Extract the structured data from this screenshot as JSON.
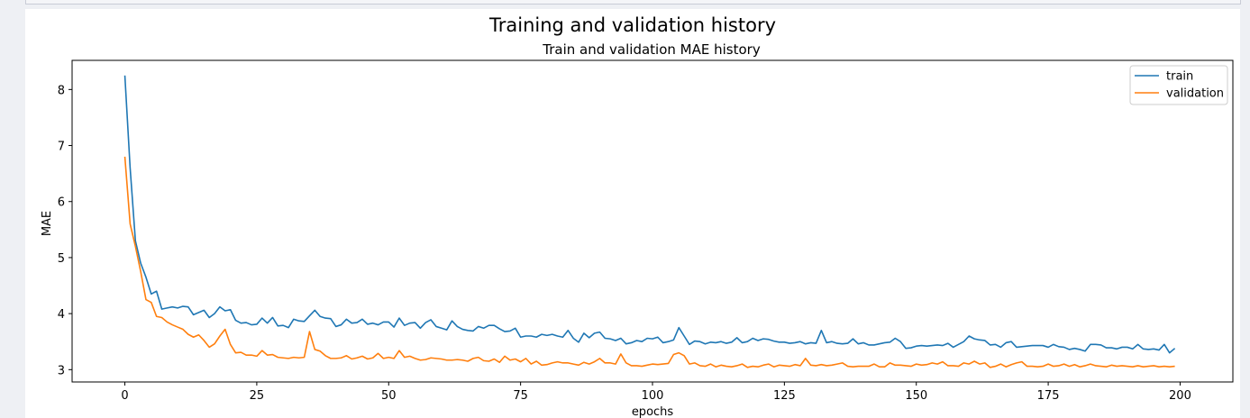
{
  "figure": {
    "suptitle": "Training and validation history"
  },
  "chart_data": {
    "type": "line",
    "title": "Train and validation MAE history",
    "xlabel": "epochs",
    "ylabel": "MAE",
    "xlim": [
      -10,
      210
    ],
    "ylim": [
      2.78,
      8.52
    ],
    "xticks": [
      0,
      25,
      50,
      75,
      100,
      125,
      150,
      175,
      200
    ],
    "yticks": [
      3,
      4,
      5,
      6,
      7,
      8
    ],
    "legend_position": "top-right",
    "series": [
      {
        "name": "train",
        "color": "#1f77b4",
        "x": [
          0,
          1,
          2,
          3,
          4,
          5,
          6,
          7,
          8,
          9,
          10,
          11,
          12,
          13,
          14,
          15,
          16,
          17,
          18,
          19,
          20,
          21,
          22,
          23,
          24,
          25,
          26,
          27,
          28,
          29,
          30,
          31,
          32,
          33,
          34,
          35,
          36,
          37,
          38,
          39,
          40,
          41,
          42,
          43,
          44,
          45,
          46,
          47,
          48,
          49,
          50,
          51,
          52,
          53,
          54,
          55,
          56,
          57,
          58,
          59,
          60,
          61,
          62,
          63,
          64,
          65,
          66,
          67,
          68,
          69,
          70,
          71,
          72,
          73,
          74,
          75,
          76,
          77,
          78,
          79,
          80,
          81,
          82,
          83,
          84,
          85,
          86,
          87,
          88,
          89,
          90,
          91,
          92,
          93,
          94,
          95,
          96,
          97,
          98,
          99,
          100,
          101,
          102,
          103,
          104,
          105,
          106,
          107,
          108,
          109,
          110,
          111,
          112,
          113,
          114,
          115,
          116,
          117,
          118,
          119,
          120,
          121,
          122,
          123,
          124,
          125,
          126,
          127,
          128,
          129,
          130,
          131,
          132,
          133,
          134,
          135,
          136,
          137,
          138,
          139,
          140,
          141,
          142,
          143,
          144,
          145,
          146,
          147,
          148,
          149,
          150,
          151,
          152,
          153,
          154,
          155,
          156,
          157,
          158,
          159,
          160,
          161,
          162,
          163,
          164,
          165,
          166,
          167,
          168,
          169,
          170,
          171,
          172,
          173,
          174,
          175,
          176,
          177,
          178,
          179,
          180,
          181,
          182,
          183,
          184,
          185,
          186,
          187,
          188,
          189,
          190,
          191,
          192,
          193,
          194,
          195,
          196,
          197,
          198,
          199
        ],
        "values": [
          8.25,
          6.6,
          5.3,
          4.9,
          4.65,
          4.35,
          4.4,
          4.08,
          4.1,
          4.12,
          4.1,
          4.13,
          4.12,
          3.98,
          4.02,
          4.06,
          3.93,
          4.0,
          4.12,
          4.05,
          4.07,
          3.88,
          3.83,
          3.84,
          3.8,
          3.81,
          3.92,
          3.83,
          3.93,
          3.78,
          3.79,
          3.75,
          3.9,
          3.87,
          3.86,
          3.96,
          4.06,
          3.95,
          3.92,
          3.91,
          3.77,
          3.8,
          3.9,
          3.83,
          3.84,
          3.9,
          3.81,
          3.83,
          3.8,
          3.85,
          3.85,
          3.76,
          3.92,
          3.79,
          3.83,
          3.84,
          3.74,
          3.84,
          3.89,
          3.77,
          3.74,
          3.71,
          3.87,
          3.77,
          3.72,
          3.7,
          3.69,
          3.77,
          3.74,
          3.79,
          3.79,
          3.73,
          3.68,
          3.69,
          3.74,
          3.58,
          3.6,
          3.6,
          3.58,
          3.63,
          3.61,
          3.63,
          3.6,
          3.58,
          3.7,
          3.56,
          3.49,
          3.65,
          3.57,
          3.65,
          3.67,
          3.56,
          3.55,
          3.52,
          3.56,
          3.46,
          3.48,
          3.52,
          3.5,
          3.56,
          3.55,
          3.58,
          3.48,
          3.5,
          3.53,
          3.75,
          3.6,
          3.45,
          3.51,
          3.5,
          3.46,
          3.49,
          3.48,
          3.5,
          3.47,
          3.49,
          3.57,
          3.48,
          3.5,
          3.56,
          3.52,
          3.55,
          3.54,
          3.51,
          3.49,
          3.49,
          3.47,
          3.48,
          3.5,
          3.46,
          3.48,
          3.47,
          3.7,
          3.48,
          3.5,
          3.47,
          3.46,
          3.47,
          3.55,
          3.46,
          3.48,
          3.44,
          3.44,
          3.46,
          3.48,
          3.49,
          3.56,
          3.5,
          3.38,
          3.39,
          3.42,
          3.43,
          3.42,
          3.43,
          3.44,
          3.43,
          3.47,
          3.4,
          3.45,
          3.5,
          3.6,
          3.55,
          3.53,
          3.52,
          3.44,
          3.45,
          3.4,
          3.48,
          3.5,
          3.4,
          3.41,
          3.42,
          3.43,
          3.43,
          3.43,
          3.4,
          3.45,
          3.41,
          3.4,
          3.36,
          3.38,
          3.36,
          3.33,
          3.45,
          3.45,
          3.44,
          3.39,
          3.39,
          3.37,
          3.4,
          3.4,
          3.37,
          3.45,
          3.37,
          3.36,
          3.37,
          3.35,
          3.45,
          3.3,
          3.38
        ]
      },
      {
        "name": "validation",
        "color": "#ff7f0e",
        "x": [
          0,
          1,
          2,
          3,
          4,
          5,
          6,
          7,
          8,
          9,
          10,
          11,
          12,
          13,
          14,
          15,
          16,
          17,
          18,
          19,
          20,
          21,
          22,
          23,
          24,
          25,
          26,
          27,
          28,
          29,
          30,
          31,
          32,
          33,
          34,
          35,
          36,
          37,
          38,
          39,
          40,
          41,
          42,
          43,
          44,
          45,
          46,
          47,
          48,
          49,
          50,
          51,
          52,
          53,
          54,
          55,
          56,
          57,
          58,
          59,
          60,
          61,
          62,
          63,
          64,
          65,
          66,
          67,
          68,
          69,
          70,
          71,
          72,
          73,
          74,
          75,
          76,
          77,
          78,
          79,
          80,
          81,
          82,
          83,
          84,
          85,
          86,
          87,
          88,
          89,
          90,
          91,
          92,
          93,
          94,
          95,
          96,
          97,
          98,
          99,
          100,
          101,
          102,
          103,
          104,
          105,
          106,
          107,
          108,
          109,
          110,
          111,
          112,
          113,
          114,
          115,
          116,
          117,
          118,
          119,
          120,
          121,
          122,
          123,
          124,
          125,
          126,
          127,
          128,
          129,
          130,
          131,
          132,
          133,
          134,
          135,
          136,
          137,
          138,
          139,
          140,
          141,
          142,
          143,
          144,
          145,
          146,
          147,
          148,
          149,
          150,
          151,
          152,
          153,
          154,
          155,
          156,
          157,
          158,
          159,
          160,
          161,
          162,
          163,
          164,
          165,
          166,
          167,
          168,
          169,
          170,
          171,
          172,
          173,
          174,
          175,
          176,
          177,
          178,
          179,
          180,
          181,
          182,
          183,
          184,
          185,
          186,
          187,
          188,
          189,
          190,
          191,
          192,
          193,
          194,
          195,
          196,
          197,
          198,
          199
        ],
        "values": [
          6.8,
          5.6,
          5.2,
          4.75,
          4.25,
          4.2,
          3.95,
          3.93,
          3.85,
          3.8,
          3.76,
          3.72,
          3.63,
          3.58,
          3.62,
          3.52,
          3.4,
          3.46,
          3.6,
          3.72,
          3.45,
          3.3,
          3.31,
          3.26,
          3.26,
          3.24,
          3.34,
          3.26,
          3.27,
          3.22,
          3.21,
          3.2,
          3.22,
          3.21,
          3.22,
          3.68,
          3.36,
          3.33,
          3.25,
          3.2,
          3.2,
          3.21,
          3.25,
          3.19,
          3.21,
          3.24,
          3.19,
          3.21,
          3.29,
          3.2,
          3.22,
          3.2,
          3.34,
          3.22,
          3.24,
          3.2,
          3.17,
          3.18,
          3.21,
          3.2,
          3.19,
          3.17,
          3.17,
          3.18,
          3.17,
          3.15,
          3.2,
          3.22,
          3.16,
          3.15,
          3.19,
          3.13,
          3.24,
          3.17,
          3.19,
          3.14,
          3.2,
          3.1,
          3.15,
          3.08,
          3.09,
          3.12,
          3.14,
          3.12,
          3.12,
          3.1,
          3.08,
          3.13,
          3.1,
          3.14,
          3.2,
          3.12,
          3.12,
          3.1,
          3.28,
          3.12,
          3.07,
          3.07,
          3.06,
          3.08,
          3.1,
          3.09,
          3.1,
          3.11,
          3.27,
          3.3,
          3.25,
          3.1,
          3.12,
          3.07,
          3.06,
          3.1,
          3.05,
          3.08,
          3.06,
          3.05,
          3.07,
          3.1,
          3.04,
          3.06,
          3.05,
          3.08,
          3.1,
          3.05,
          3.08,
          3.07,
          3.06,
          3.09,
          3.07,
          3.2,
          3.08,
          3.07,
          3.09,
          3.07,
          3.08,
          3.1,
          3.12,
          3.06,
          3.05,
          3.06,
          3.06,
          3.06,
          3.1,
          3.05,
          3.05,
          3.12,
          3.08,
          3.08,
          3.07,
          3.06,
          3.1,
          3.08,
          3.09,
          3.12,
          3.1,
          3.14,
          3.07,
          3.07,
          3.06,
          3.12,
          3.1,
          3.15,
          3.1,
          3.12,
          3.04,
          3.06,
          3.1,
          3.05,
          3.09,
          3.12,
          3.14,
          3.06,
          3.06,
          3.05,
          3.06,
          3.1,
          3.06,
          3.07,
          3.1,
          3.06,
          3.09,
          3.05,
          3.07,
          3.1,
          3.07,
          3.06,
          3.05,
          3.08,
          3.06,
          3.07,
          3.06,
          3.05,
          3.07,
          3.05,
          3.06,
          3.07,
          3.05,
          3.06,
          3.05,
          3.06
        ]
      }
    ]
  }
}
